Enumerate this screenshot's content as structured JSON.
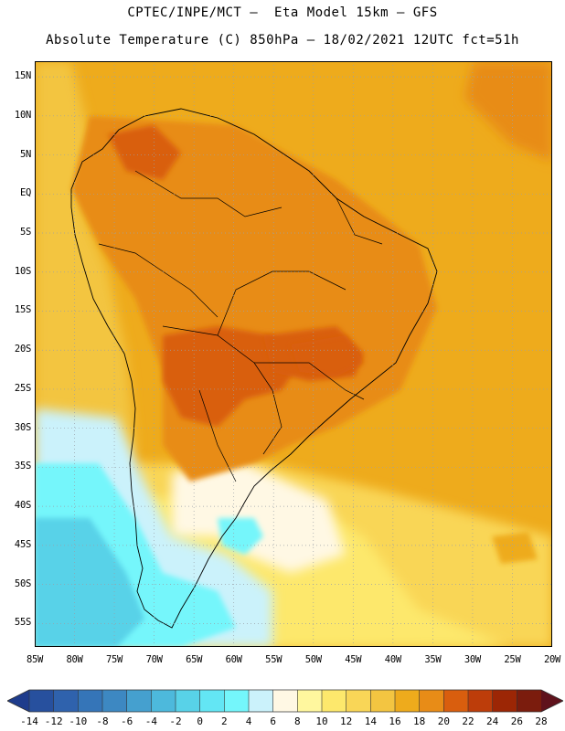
{
  "title_line1": "CPTEC/INPE/MCT –  Eta Model 15km – GFS",
  "title_line2": "Absolute Temperature (C) 850hPa – 18/02/2021 12UTC fct=51h",
  "map": {
    "lon_range": [
      -85,
      -20
    ],
    "lat_range": [
      -58,
      17
    ],
    "lat_ticks": [
      {
        "value": 15,
        "label": "15N"
      },
      {
        "value": 10,
        "label": "10N"
      },
      {
        "value": 5,
        "label": "5N"
      },
      {
        "value": 0,
        "label": "EQ"
      },
      {
        "value": -5,
        "label": "5S"
      },
      {
        "value": -10,
        "label": "10S"
      },
      {
        "value": -15,
        "label": "15S"
      },
      {
        "value": -20,
        "label": "20S"
      },
      {
        "value": -25,
        "label": "25S"
      },
      {
        "value": -30,
        "label": "30S"
      },
      {
        "value": -35,
        "label": "35S"
      },
      {
        "value": -40,
        "label": "40S"
      },
      {
        "value": -45,
        "label": "45S"
      },
      {
        "value": -50,
        "label": "50S"
      },
      {
        "value": -55,
        "label": "55S"
      }
    ],
    "lon_ticks": [
      {
        "value": -85,
        "label": "85W"
      },
      {
        "value": -80,
        "label": "80W"
      },
      {
        "value": -75,
        "label": "75W"
      },
      {
        "value": -70,
        "label": "70W"
      },
      {
        "value": -65,
        "label": "65W"
      },
      {
        "value": -60,
        "label": "60W"
      },
      {
        "value": -55,
        "label": "55W"
      },
      {
        "value": -50,
        "label": "50W"
      },
      {
        "value": -45,
        "label": "45W"
      },
      {
        "value": -40,
        "label": "40W"
      },
      {
        "value": -35,
        "label": "35W"
      },
      {
        "value": -30,
        "label": "30W"
      },
      {
        "value": -25,
        "label": "25W"
      },
      {
        "value": -20,
        "label": "20W"
      }
    ],
    "grid": "dotted"
  },
  "colorbar": {
    "labels": [
      "-14",
      "-12",
      "-10",
      "-8",
      "-6",
      "-4",
      "-2",
      "0",
      "2",
      "4",
      "6",
      "8",
      "10",
      "12",
      "14",
      "16",
      "18",
      "20",
      "22",
      "24",
      "26",
      "28"
    ],
    "colors": [
      "#1e3c8c",
      "#27509e",
      "#2f62ad",
      "#3575b8",
      "#3d88c2",
      "#45a0cf",
      "#4db9dc",
      "#58d2e8",
      "#63e6f4",
      "#74f6fb",
      "#cbf2fb",
      "#fff8e4",
      "#fff79e",
      "#fde86c",
      "#f9d657",
      "#f3c541",
      "#eeab1c",
      "#e88c17",
      "#d95e0e",
      "#bd3d0a",
      "#9c2605",
      "#7b1c0d",
      "#5f121c"
    ]
  }
}
